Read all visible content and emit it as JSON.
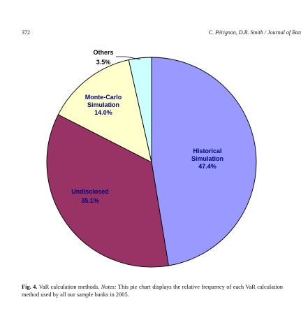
{
  "header": {
    "page_number": "372",
    "running_title": "C. Pérignon, D.R. Smith / Journal of Ban"
  },
  "chart_data": {
    "type": "pie",
    "slices": [
      {
        "label_lines": [
          "Historical",
          "Simulation"
        ],
        "value_text": "47.4%",
        "value": 47.4,
        "color": "#9999ff",
        "label_color": "#000080"
      },
      {
        "label_lines": [
          "Undisclosed"
        ],
        "value_text": "35.1%",
        "value": 35.1,
        "color": "#993366",
        "label_color": "#000080"
      },
      {
        "label_lines": [
          "Monte-Carlo",
          "Simulation"
        ],
        "value_text": "14.0%",
        "value": 14.0,
        "color": "#ffffcc",
        "label_color": "#000080"
      },
      {
        "label_lines": [
          "Others"
        ],
        "value_text": "3.5%",
        "value": 3.5,
        "color": "#ccffff",
        "label_color": "#000000"
      }
    ],
    "start_angle_deg": 0,
    "direction": "clockwise",
    "edge_color": "#000000"
  },
  "caption": {
    "fig_label": "Fig. 4.",
    "title": "VaR calculation methods.",
    "notes_label": "Notes:",
    "text": "This pie chart displays the relative frequency of each VaR calculation method used by all our sample banks in 2005."
  }
}
